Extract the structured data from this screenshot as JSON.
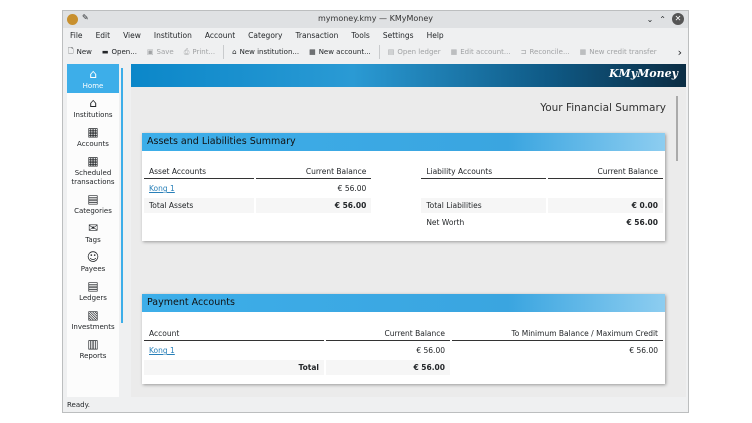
{
  "window": {
    "title": "mymoney.kmy — KMyMoney"
  },
  "menu": [
    "File",
    "Edit",
    "View",
    "Institution",
    "Account",
    "Category",
    "Transaction",
    "Tools",
    "Settings",
    "Help"
  ],
  "toolbar": [
    {
      "label": "New",
      "icon": "new-file-icon",
      "enabled": true
    },
    {
      "label": "Open...",
      "icon": "open-folder-icon",
      "enabled": true
    },
    {
      "label": "Save",
      "icon": "save-icon",
      "enabled": false
    },
    {
      "label": "Print...",
      "icon": "print-icon",
      "enabled": false
    },
    {
      "label": "New institution...",
      "icon": "institution-icon",
      "enabled": true
    },
    {
      "label": "New account...",
      "icon": "account-icon",
      "enabled": true
    },
    {
      "label": "Open ledger",
      "icon": "ledger-icon",
      "enabled": false
    },
    {
      "label": "Edit account...",
      "icon": "edit-account-icon",
      "enabled": false
    },
    {
      "label": "Reconcile...",
      "icon": "reconcile-icon",
      "enabled": false
    },
    {
      "label": "New credit transfer",
      "icon": "credit-transfer-icon",
      "enabled": false
    }
  ],
  "sidebar": [
    {
      "label": "Home",
      "icon": "home-icon",
      "active": true
    },
    {
      "label": "Institutions",
      "icon": "institution-icon"
    },
    {
      "label": "Accounts",
      "icon": "accounts-icon"
    },
    {
      "label": "Scheduled transactions",
      "icon": "calendar-icon"
    },
    {
      "label": "Categories",
      "icon": "categories-icon"
    },
    {
      "label": "Tags",
      "icon": "tag-icon"
    },
    {
      "label": "Payees",
      "icon": "payees-icon"
    },
    {
      "label": "Ledgers",
      "icon": "ledger-icon"
    },
    {
      "label": "Investments",
      "icon": "investments-icon"
    },
    {
      "label": "Reports",
      "icon": "reports-icon"
    }
  ],
  "banner": {
    "logo": "KMyMoney"
  },
  "summary_title": "Your Financial Summary",
  "assets": {
    "title": "Assets and Liabilities Summary",
    "headers": [
      "Asset Accounts",
      "Current Balance",
      "Liability Accounts",
      "Current Balance"
    ],
    "row": {
      "account": "Kong 1",
      "balance": "€ 56.00"
    },
    "total_assets_label": "Total Assets",
    "total_assets": "€ 56.00",
    "total_liabilities_label": "Total Liabilities",
    "total_liabilities": "€ 0.00",
    "net_worth_label": "Net Worth",
    "net_worth": "€ 56.00"
  },
  "payments": {
    "title": "Payment Accounts",
    "headers": [
      "Account",
      "Current Balance",
      "To Minimum Balance / Maximum Credit"
    ],
    "row": {
      "account": "Kong 1",
      "balance": "€ 56.00",
      "to_min": "€ 56.00"
    },
    "total_label": "Total",
    "total": "€ 56.00"
  },
  "status": "Ready.",
  "colors": {
    "accent": "#3daee9"
  }
}
